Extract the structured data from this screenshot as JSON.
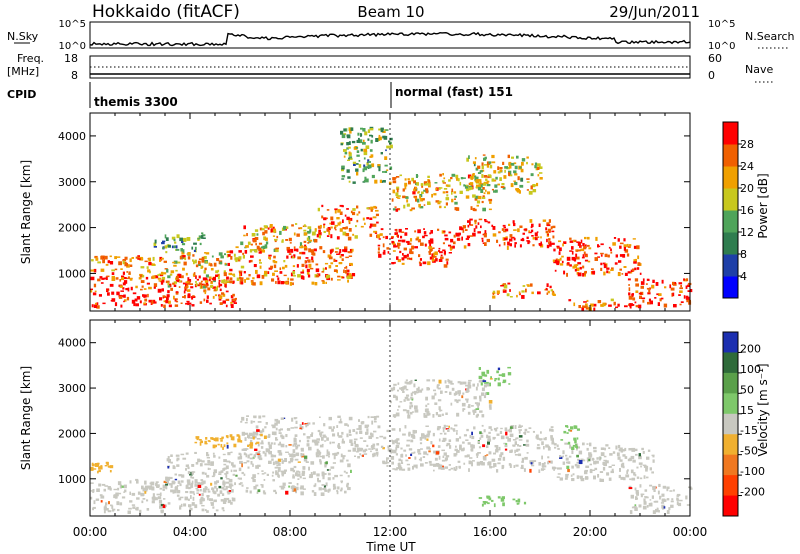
{
  "header": {
    "station": "Hokkaido (fitACF)",
    "beam": "Beam 10",
    "date": "29/Jun/2011"
  },
  "noise_panel": {
    "left_label": "N.Sky",
    "right_label": "N.Search",
    "left_ticks": [
      "10^5",
      "10^0"
    ],
    "right_ticks": [
      "10^5",
      "10^0"
    ]
  },
  "freq_panel": {
    "left_label_1": "Freq.",
    "left_label_2": "[MHz]",
    "right_label": "Nave",
    "left_ticks": [
      "18",
      "8"
    ],
    "right_ticks": [
      "60",
      "0"
    ]
  },
  "cpid": {
    "label": "CPID",
    "entries": [
      "themis 3300",
      "normal (fast) 151"
    ],
    "switch_time": "12:00"
  },
  "power_panel": {
    "ylabel": "Slant Range [km]",
    "colorbar_label": "Power [dB]"
  },
  "velocity_panel": {
    "ylabel": "Slant Range [km]",
    "colorbar_label": "Velocity [m s⁻¹]"
  },
  "xlabel": "Time UT",
  "chart_data": [
    {
      "type": "heatmap",
      "name": "power",
      "x_ticks": [
        "00:00",
        "04:00",
        "08:00",
        "12:00",
        "16:00",
        "20:00",
        "00:00"
      ],
      "x_range_hours": [
        0,
        24
      ],
      "y_ticks": [
        1000,
        2000,
        3000,
        4000
      ],
      "ylim": [
        180,
        4500
      ],
      "colorbar": {
        "ticks": [
          4,
          8,
          12,
          16,
          20,
          24,
          28
        ],
        "range": [
          0,
          30
        ],
        "colors": [
          "#0000ff",
          "#1e3fa8",
          "#2f7d4f",
          "#4fa45a",
          "#c8c81e",
          "#f0a000",
          "#f06000",
          "#ff0000"
        ]
      },
      "bands": [
        {
          "t0": 0.0,
          "t1": 5.8,
          "r0": 300,
          "r1": 1000,
          "level": 28
        },
        {
          "t0": 0.0,
          "t1": 3.0,
          "r0": 900,
          "r1": 1400,
          "level": 22
        },
        {
          "t0": 3.0,
          "t1": 5.5,
          "r0": 700,
          "r1": 1500,
          "level": 20
        },
        {
          "t0": 5.5,
          "t1": 10.5,
          "r0": 800,
          "r1": 1600,
          "level": 24
        },
        {
          "t0": 6.0,
          "t1": 9.0,
          "r0": 1500,
          "r1": 2100,
          "level": 20
        },
        {
          "t0": 9.0,
          "t1": 11.5,
          "r0": 1800,
          "r1": 2500,
          "level": 24
        },
        {
          "t0": 11.5,
          "t1": 14.5,
          "r0": 1200,
          "r1": 2000,
          "level": 28
        },
        {
          "t0": 14.5,
          "t1": 18.5,
          "r0": 1600,
          "r1": 2200,
          "level": 28
        },
        {
          "t0": 18.5,
          "t1": 22.0,
          "r0": 1000,
          "r1": 1800,
          "level": 26
        },
        {
          "t0": 21.5,
          "t1": 24.0,
          "r0": 300,
          "r1": 900,
          "level": 28
        },
        {
          "t0": 12.0,
          "t1": 16.0,
          "r0": 2400,
          "r1": 3200,
          "level": 20
        },
        {
          "t0": 15.0,
          "t1": 18.0,
          "r0": 2800,
          "r1": 3600,
          "level": 18
        },
        {
          "t0": 16.0,
          "t1": 18.5,
          "r0": 500,
          "r1": 800,
          "level": 22
        },
        {
          "t0": 19.0,
          "t1": 21.5,
          "r0": 250,
          "r1": 450,
          "level": 24
        },
        {
          "t0": 10.0,
          "t1": 12.0,
          "r0": 3000,
          "r1": 4200,
          "level": 14
        },
        {
          "t0": 2.5,
          "t1": 4.5,
          "r0": 1500,
          "r1": 1900,
          "level": 12
        }
      ]
    },
    {
      "type": "heatmap",
      "name": "velocity",
      "x_ticks": [
        "00:00",
        "04:00",
        "08:00",
        "12:00",
        "16:00",
        "20:00",
        "00:00"
      ],
      "x_range_hours": [
        0,
        24
      ],
      "y_ticks": [
        1000,
        2000,
        3000,
        4000
      ],
      "ylim": [
        180,
        4500
      ],
      "colorbar": {
        "ticks": [
          200,
          100,
          50,
          15,
          -15,
          -50,
          -100,
          -200
        ],
        "colors": [
          "#1c2fb0",
          "#2f6b3a",
          "#5aa04a",
          "#7ec86a",
          "#c8c8c0",
          "#f0b030",
          "#f07820",
          "#ff4000",
          "#ff0000"
        ]
      },
      "bands": [
        {
          "t0": 0.0,
          "t1": 5.8,
          "r0": 300,
          "r1": 1000,
          "vel": 0
        },
        {
          "t0": 0.0,
          "t1": 0.8,
          "r0": 1150,
          "r1": 1400,
          "vel": -60
        },
        {
          "t0": 3.0,
          "t1": 10.5,
          "r0": 700,
          "r1": 1600,
          "vel": 0
        },
        {
          "t0": 6.0,
          "t1": 11.5,
          "r0": 1500,
          "r1": 2400,
          "vel": 0
        },
        {
          "t0": 11.5,
          "t1": 18.5,
          "r0": 1200,
          "r1": 2200,
          "vel": 0
        },
        {
          "t0": 18.5,
          "t1": 22.5,
          "r0": 1000,
          "r1": 1800,
          "vel": 0
        },
        {
          "t0": 21.5,
          "t1": 24.0,
          "r0": 300,
          "r1": 900,
          "vel": 0
        },
        {
          "t0": 15.5,
          "t1": 17.5,
          "r0": 450,
          "r1": 650,
          "vel": 40
        },
        {
          "t0": 18.8,
          "t1": 19.5,
          "r0": 1700,
          "r1": 2200,
          "vel": 40
        },
        {
          "t0": 15.5,
          "t1": 16.8,
          "r0": 3100,
          "r1": 3500,
          "vel": 40
        },
        {
          "t0": 12.0,
          "t1": 16.0,
          "r0": 2400,
          "r1": 3200,
          "vel": 0
        },
        {
          "t0": 4.0,
          "t1": 7.0,
          "r0": 1700,
          "r1": 2000,
          "vel": -30
        }
      ]
    }
  ]
}
